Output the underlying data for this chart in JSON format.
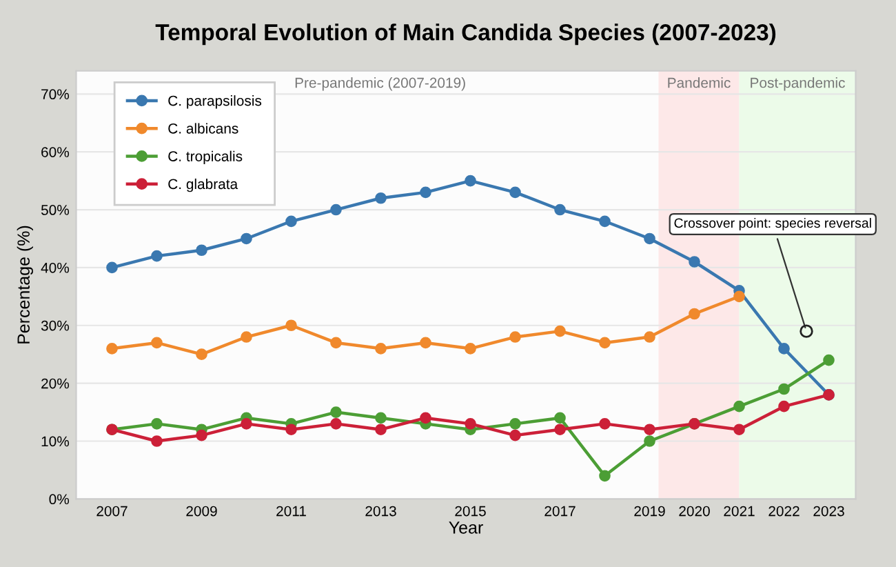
{
  "chart_data": {
    "type": "line",
    "title": "Temporal Evolution of Main Candida Species (2007-2023)",
    "xlabel": "Year",
    "ylabel": "Percentage (%)",
    "x": [
      2007,
      2008,
      2009,
      2010,
      2011,
      2012,
      2013,
      2014,
      2015,
      2016,
      2017,
      2018,
      2019,
      2020,
      2021,
      2022,
      2023
    ],
    "series": [
      {
        "name": "C. parapsilosis",
        "color": "#3a78b0",
        "values": [
          40,
          42,
          43,
          45,
          48,
          50,
          52,
          53,
          55,
          53,
          50,
          48,
          45,
          41,
          36,
          26,
          18
        ]
      },
      {
        "name": "C. albicans",
        "color": "#f0892c",
        "values": [
          26,
          27,
          25,
          28,
          30,
          27,
          26,
          27,
          26,
          28,
          29,
          27,
          28,
          32,
          35,
          null,
          null
        ]
      },
      {
        "name": "C. tropicalis",
        "color": "#4c9e35",
        "values": [
          12,
          13,
          12,
          14,
          13,
          15,
          14,
          13,
          12,
          13,
          14,
          4,
          10,
          13,
          16,
          19,
          24
        ]
      },
      {
        "name": "C. glabrata",
        "color": "#cc2038",
        "values": [
          12,
          10,
          11,
          13,
          12,
          13,
          12,
          14,
          13,
          11,
          12,
          13,
          12,
          13,
          12,
          16,
          18
        ]
      }
    ],
    "xlim": [
      2006.2,
      2023.6
    ],
    "xticks": [
      2007,
      2009,
      2011,
      2013,
      2015,
      2017,
      2019,
      2020,
      2021,
      2022,
      2023
    ],
    "ylim": [
      0,
      74
    ],
    "yticks": [
      {
        "value": 0,
        "label": "0%"
      },
      {
        "value": 10,
        "label": "10%"
      },
      {
        "value": 20,
        "label": "20%"
      },
      {
        "value": 30,
        "label": "30%"
      },
      {
        "value": 40,
        "label": "40%"
      },
      {
        "value": 50,
        "label": "50%"
      },
      {
        "value": 60,
        "label": "60%"
      },
      {
        "value": 70,
        "label": "70%"
      }
    ],
    "bands": [
      {
        "axis": "x",
        "from": 2019.2,
        "to": 2021,
        "label": "Pandemic",
        "color": "#fde8e8"
      },
      {
        "axis": "x",
        "from": 2021,
        "to": 2023.6,
        "label": "Post-pandemic",
        "color": "#ecfbe9"
      }
    ],
    "annotations": [
      "Pre-pandemic (2007-2019)",
      {
        "text": "Crossover point: species reversal",
        "x": 2022.5,
        "y": 29
      }
    ],
    "grid": "y",
    "legend": "top left",
    "marker": "circle",
    "line_style": "solid"
  }
}
